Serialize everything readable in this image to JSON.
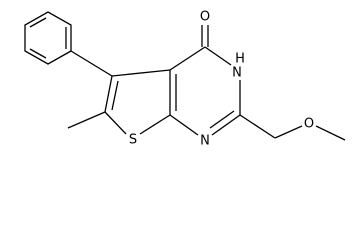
{
  "atoms": [
    {
      "label": "O"
    },
    {
      "label": "H"
    },
    {
      "label": "N"
    },
    {
      "label": "N"
    },
    {
      "label": "S"
    },
    {
      "label": "O"
    }
  ]
}
